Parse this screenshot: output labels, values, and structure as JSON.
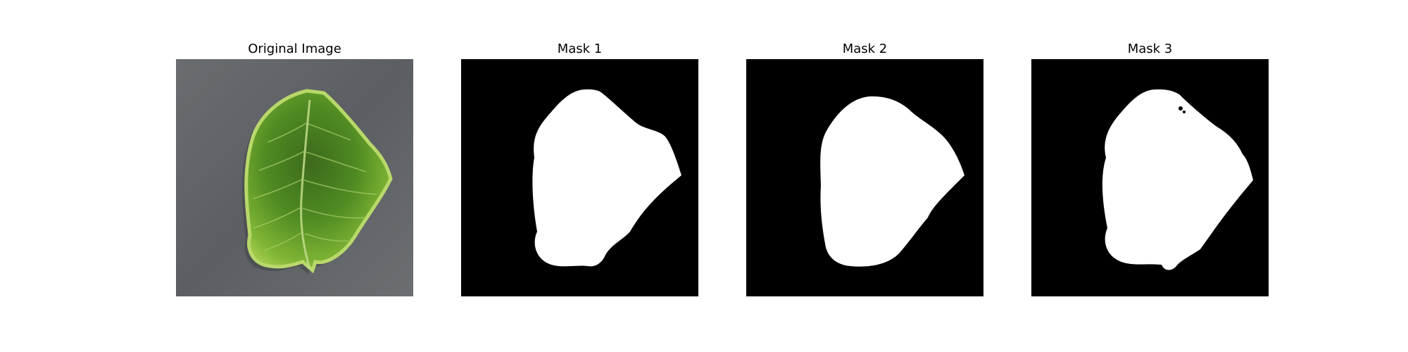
{
  "panels": [
    {
      "title": "Original Image",
      "content": "green-leaf-photo"
    },
    {
      "title": "Mask 1",
      "content": "binary-mask"
    },
    {
      "title": "Mask 2",
      "content": "binary-mask"
    },
    {
      "title": "Mask 3",
      "content": "binary-mask"
    }
  ],
  "colors": {
    "background": "#ffffff",
    "photo_background": "#5b5e62",
    "leaf_dark": "#3f6e1f",
    "leaf_mid": "#5d9a2a",
    "leaf_light": "#a9cf4a",
    "mask_background": "#000000",
    "mask_foreground": "#ffffff"
  }
}
